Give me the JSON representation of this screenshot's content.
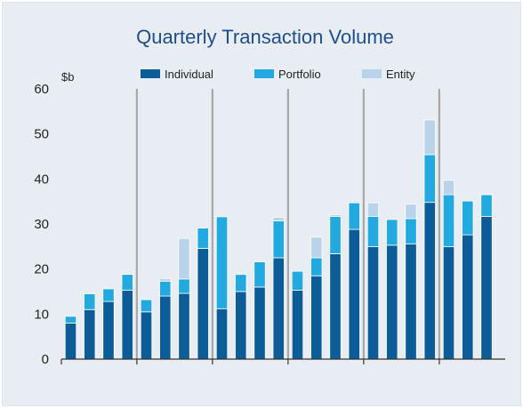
{
  "chart_data": {
    "type": "bar",
    "stacked": true,
    "title": "Quarterly Transaction Volume",
    "ylabel": "$b",
    "xlabel": "",
    "ylim": [
      0,
      60
    ],
    "yticks": [
      0,
      10,
      20,
      30,
      40,
      50,
      60
    ],
    "grid": false,
    "legend_position": "top",
    "year_group_size": 4,
    "colors": {
      "title": "#1f4e8c",
      "Individual": "#0b5c97",
      "Portfolio": "#22a9df",
      "Entity": "#b9d3ea",
      "axis": "#333333",
      "separator": "#a8a8a8",
      "background": "#e8edf3"
    },
    "series": [
      {
        "name": "Individual",
        "values": [
          8,
          11,
          12.8,
          15.3,
          10.5,
          14,
          14.6,
          24.6,
          11.2,
          15,
          16,
          22.5,
          15.3,
          18.5,
          23.4,
          28.8,
          25,
          25.3,
          25.6,
          34.8,
          25,
          27.6,
          31.7
        ]
      },
      {
        "name": "Portfolio",
        "values": [
          1.5,
          3.5,
          2.8,
          3.5,
          2.7,
          3.3,
          3.2,
          4.5,
          20.4,
          3.8,
          5.6,
          8.2,
          4.2,
          4,
          8.3,
          5.9,
          6.7,
          5.7,
          5.6,
          10.6,
          11.5,
          7.5,
          4.8
        ]
      },
      {
        "name": "Entity",
        "values": [
          0,
          0,
          0,
          0,
          0,
          0.6,
          9,
          0,
          0,
          0,
          0,
          0.8,
          0,
          4.6,
          0.4,
          0,
          3,
          0,
          3.2,
          7.7,
          3.2,
          0,
          0
        ]
      }
    ]
  }
}
